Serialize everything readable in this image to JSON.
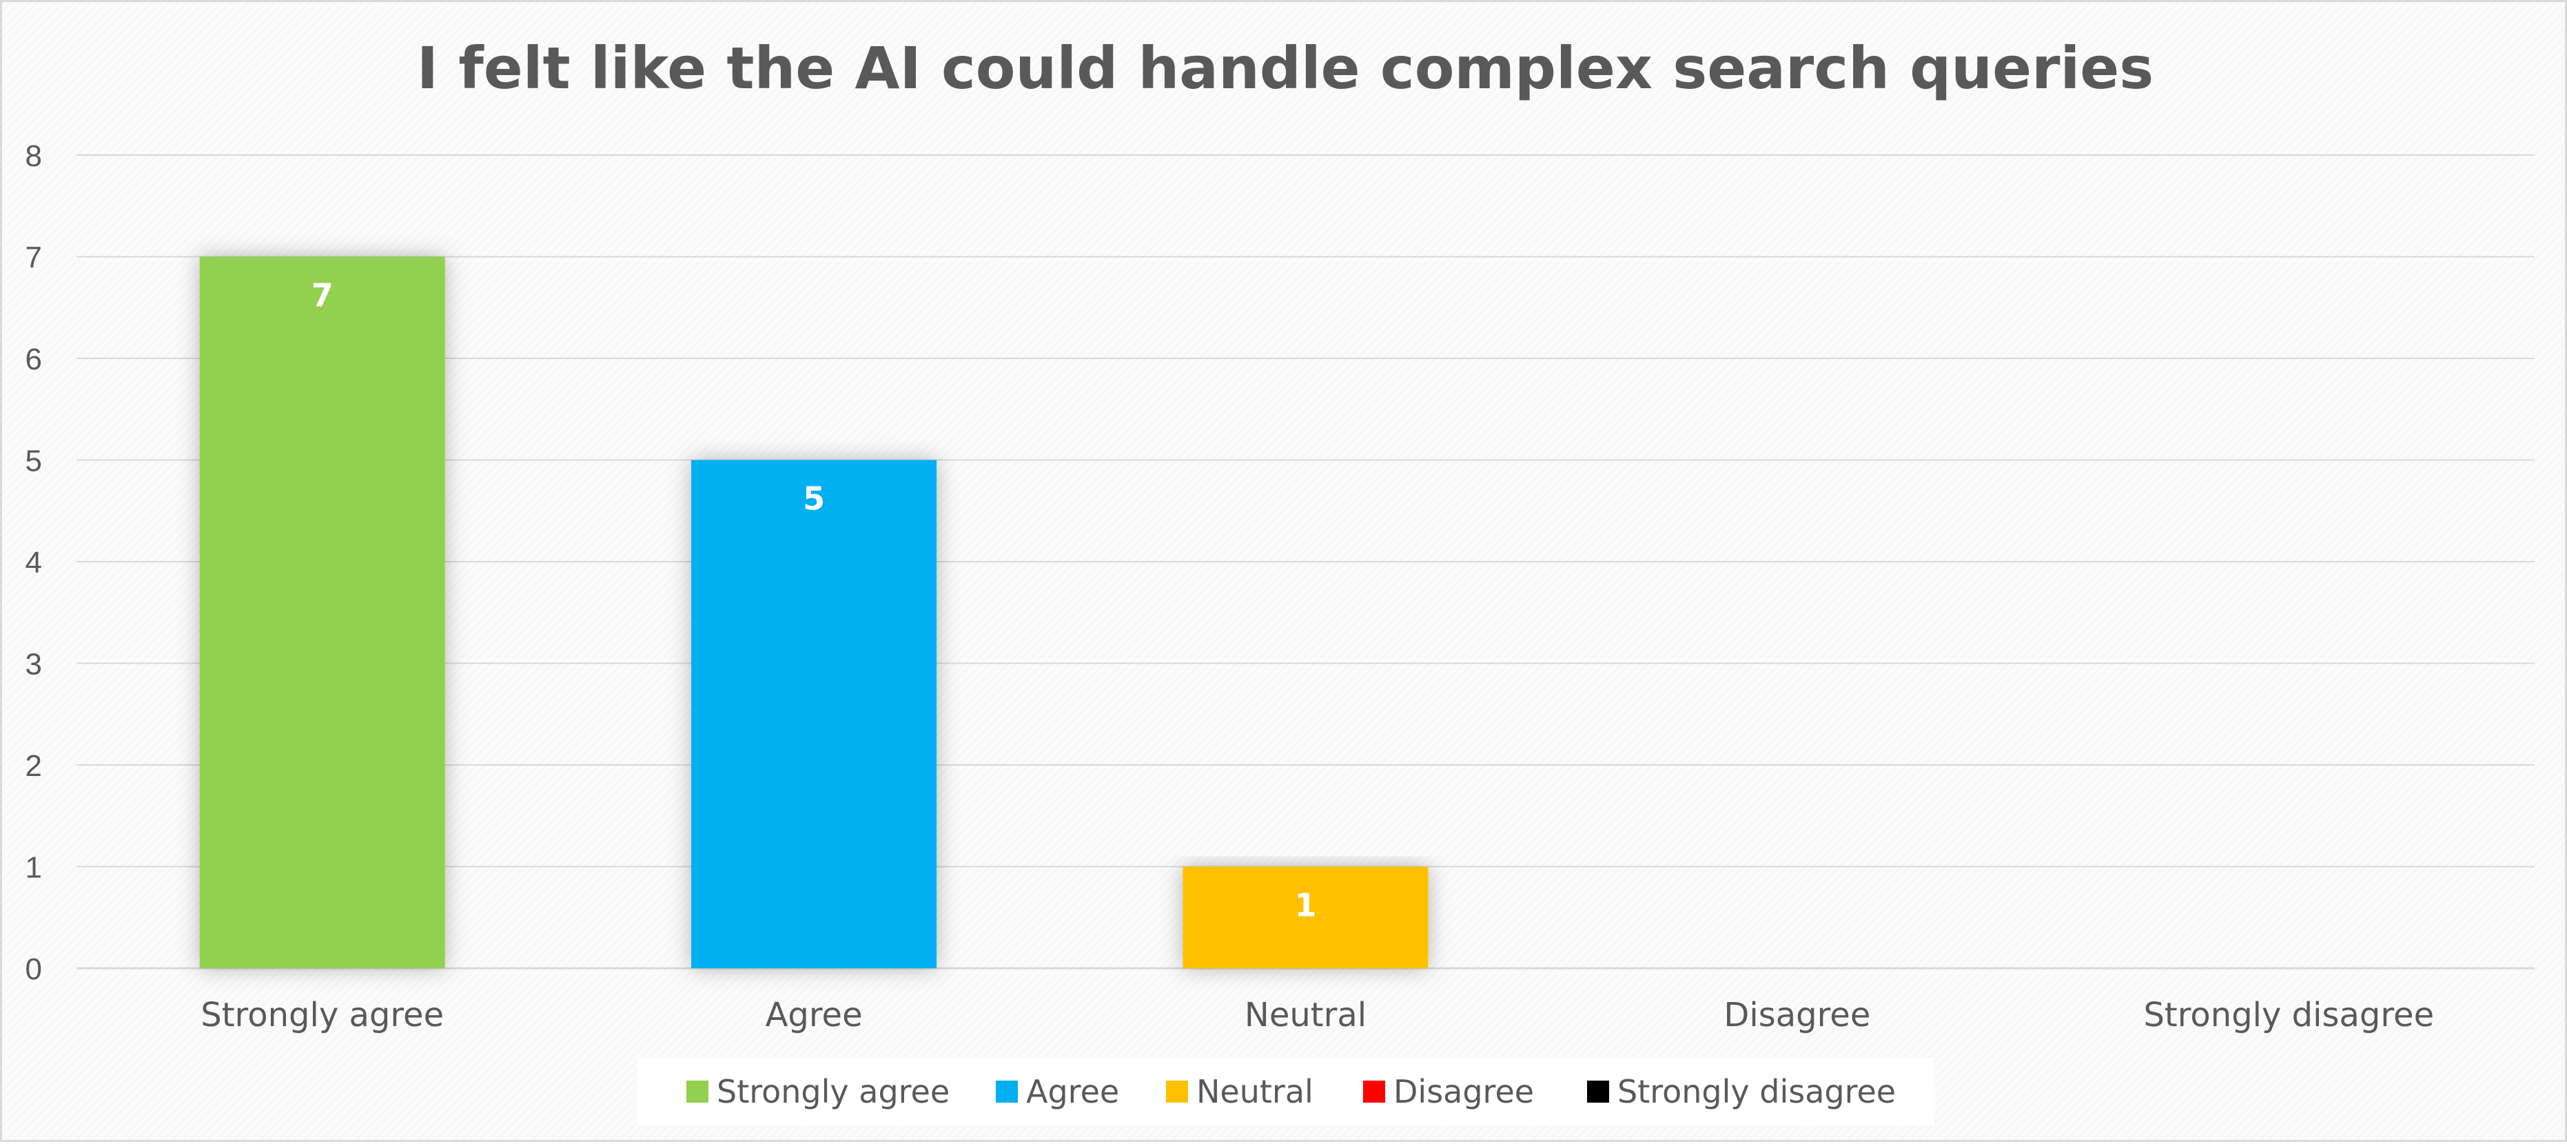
{
  "chart_data": {
    "type": "bar",
    "title": "I felt like the AI could handle complex search queries",
    "xlabel": "",
    "ylabel": "",
    "categories": [
      "Strongly agree",
      "Agree",
      "Neutral",
      "Disagree",
      "Strongly disagree"
    ],
    "values": [
      7,
      5,
      1,
      0,
      0
    ],
    "data_labels": [
      "7",
      "5",
      "1",
      "",
      ""
    ],
    "colors": [
      "#92d050",
      "#00b0f0",
      "#ffc000",
      "#ff0000",
      "#000000"
    ],
    "ylim": [
      0,
      8
    ],
    "yticks": [
      "0",
      "1",
      "2",
      "3",
      "4",
      "5",
      "6",
      "7",
      "8"
    ],
    "grid": true,
    "legend": {
      "position": "bottom",
      "entries": [
        "Strongly agree",
        "Agree",
        "Neutral",
        "Disagree",
        "Strongly disagree"
      ]
    }
  }
}
